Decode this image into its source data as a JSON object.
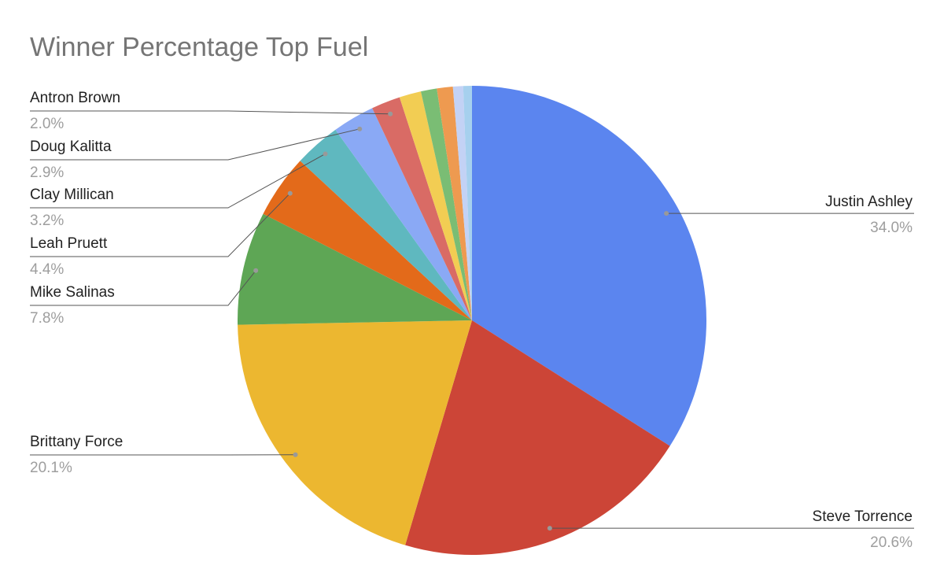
{
  "chart_data": {
    "type": "pie",
    "title": "Winner Percentage Top Fuel",
    "categories": [
      "Justin Ashley",
      "Steve Torrence",
      "Brittany Force",
      "Mike Salinas",
      "Leah Pruett",
      "Clay Millican",
      "Doug Kalitta",
      "Antron Brown",
      null,
      null,
      null,
      null,
      null
    ],
    "values": [
      34.0,
      20.6,
      20.1,
      7.8,
      4.4,
      3.2,
      2.9,
      2.0,
      1.5,
      1.1,
      1.1,
      0.7,
      0.6
    ],
    "value_labels": [
      "34.0%",
      "20.6%",
      "20.1%",
      "7.8%",
      "4.4%",
      "3.2%",
      "2.9%",
      "2.0%",
      null,
      null,
      null,
      null,
      null
    ],
    "colors": [
      "#5b85ef",
      "#cc4537",
      "#ecb730",
      "#5ea655",
      "#e36a1a",
      "#5fb8bf",
      "#8aa9f5",
      "#d96b65",
      "#f2cd53",
      "#7abd74",
      "#ee9a50",
      "#c3d2f5",
      "#a6d0ee"
    ]
  }
}
